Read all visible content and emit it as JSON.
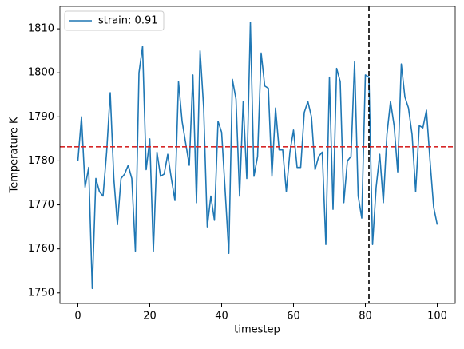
{
  "chart_data": {
    "type": "line",
    "xlabel": "timestep",
    "ylabel": "Temperature K",
    "x": [
      0,
      1,
      2,
      3,
      4,
      5,
      6,
      7,
      8,
      9,
      10,
      11,
      12,
      13,
      14,
      15,
      16,
      17,
      18,
      19,
      20,
      21,
      22,
      23,
      24,
      25,
      26,
      27,
      28,
      29,
      30,
      31,
      32,
      33,
      34,
      35,
      36,
      37,
      38,
      39,
      40,
      41,
      42,
      43,
      44,
      45,
      46,
      47,
      48,
      49,
      50,
      51,
      52,
      53,
      54,
      55,
      56,
      57,
      58,
      59,
      60,
      61,
      62,
      63,
      64,
      65,
      66,
      67,
      68,
      69,
      70,
      71,
      72,
      73,
      74,
      75,
      76,
      77,
      78,
      79,
      80,
      81,
      82,
      83,
      84,
      85,
      86,
      87,
      88,
      89,
      90,
      91,
      92,
      93,
      94,
      95,
      96,
      97,
      98,
      99,
      100
    ],
    "series": [
      {
        "name": "strain: 0.91",
        "color": "#1f77b4",
        "values": [
          1780,
          1790,
          1774,
          1778.5,
          1751,
          1776,
          1773,
          1772,
          1782,
          1795.5,
          1776,
          1765.5,
          1776,
          1777,
          1779,
          1776,
          1759.5,
          1800,
          1806,
          1778,
          1785,
          1759.5,
          1782,
          1776.5,
          1777,
          1781.5,
          1776,
          1771,
          1798,
          1789,
          1784,
          1779,
          1799.5,
          1770.5,
          1805,
          1792,
          1765,
          1772,
          1766.5,
          1789,
          1786.5,
          1773,
          1759,
          1798.5,
          1794,
          1772,
          1793.5,
          1776,
          1811.5,
          1776.5,
          1781,
          1804.5,
          1797,
          1796.5,
          1776.5,
          1792,
          1782.5,
          1782.5,
          1773,
          1782,
          1787,
          1778.5,
          1778.5,
          1791,
          1793.5,
          1790,
          1778,
          1781,
          1782,
          1761,
          1799,
          1769,
          1801,
          1798,
          1770.5,
          1780,
          1781,
          1802.5,
          1772,
          1767,
          1799.5,
          1799,
          1761,
          1774,
          1781.5,
          1770.5,
          1786,
          1793.5,
          1788,
          1777.5,
          1802,
          1794.5,
          1792,
          1786,
          1773,
          1788,
          1787.5,
          1791.5,
          1780,
          1769.5,
          1765.5
        ]
      }
    ],
    "hline": {
      "value": 1783.2,
      "color": "#d62728"
    },
    "vline": {
      "value": 81,
      "color": "#000000"
    },
    "xlim": [
      -5,
      105
    ],
    "ylim": [
      1747.6,
      1815.1
    ],
    "xticks": [
      0,
      20,
      40,
      60,
      80,
      100
    ],
    "yticks": [
      1750,
      1760,
      1770,
      1780,
      1790,
      1800,
      1810
    ],
    "legend": "upper left",
    "grid": false
  }
}
